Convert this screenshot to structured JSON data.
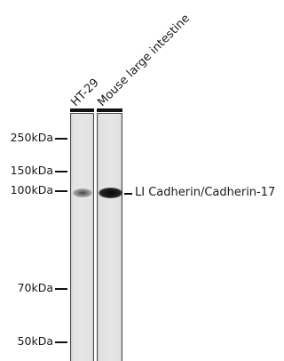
{
  "lanes": [
    {
      "label": "HT-29"
    },
    {
      "label": "Mouse large intestine"
    }
  ],
  "markers": [
    {
      "label": "250kDa"
    },
    {
      "label": "150kDa"
    },
    {
      "label": "100kDa"
    },
    {
      "label": "70kDa"
    },
    {
      "label": "50kDa"
    }
  ],
  "target": {
    "label": "LI Cadherin/Cadherin-17"
  },
  "colors": {
    "membrane": "#e4e4e4",
    "band": "#1a1a1a",
    "text": "#1a1a1a"
  }
}
